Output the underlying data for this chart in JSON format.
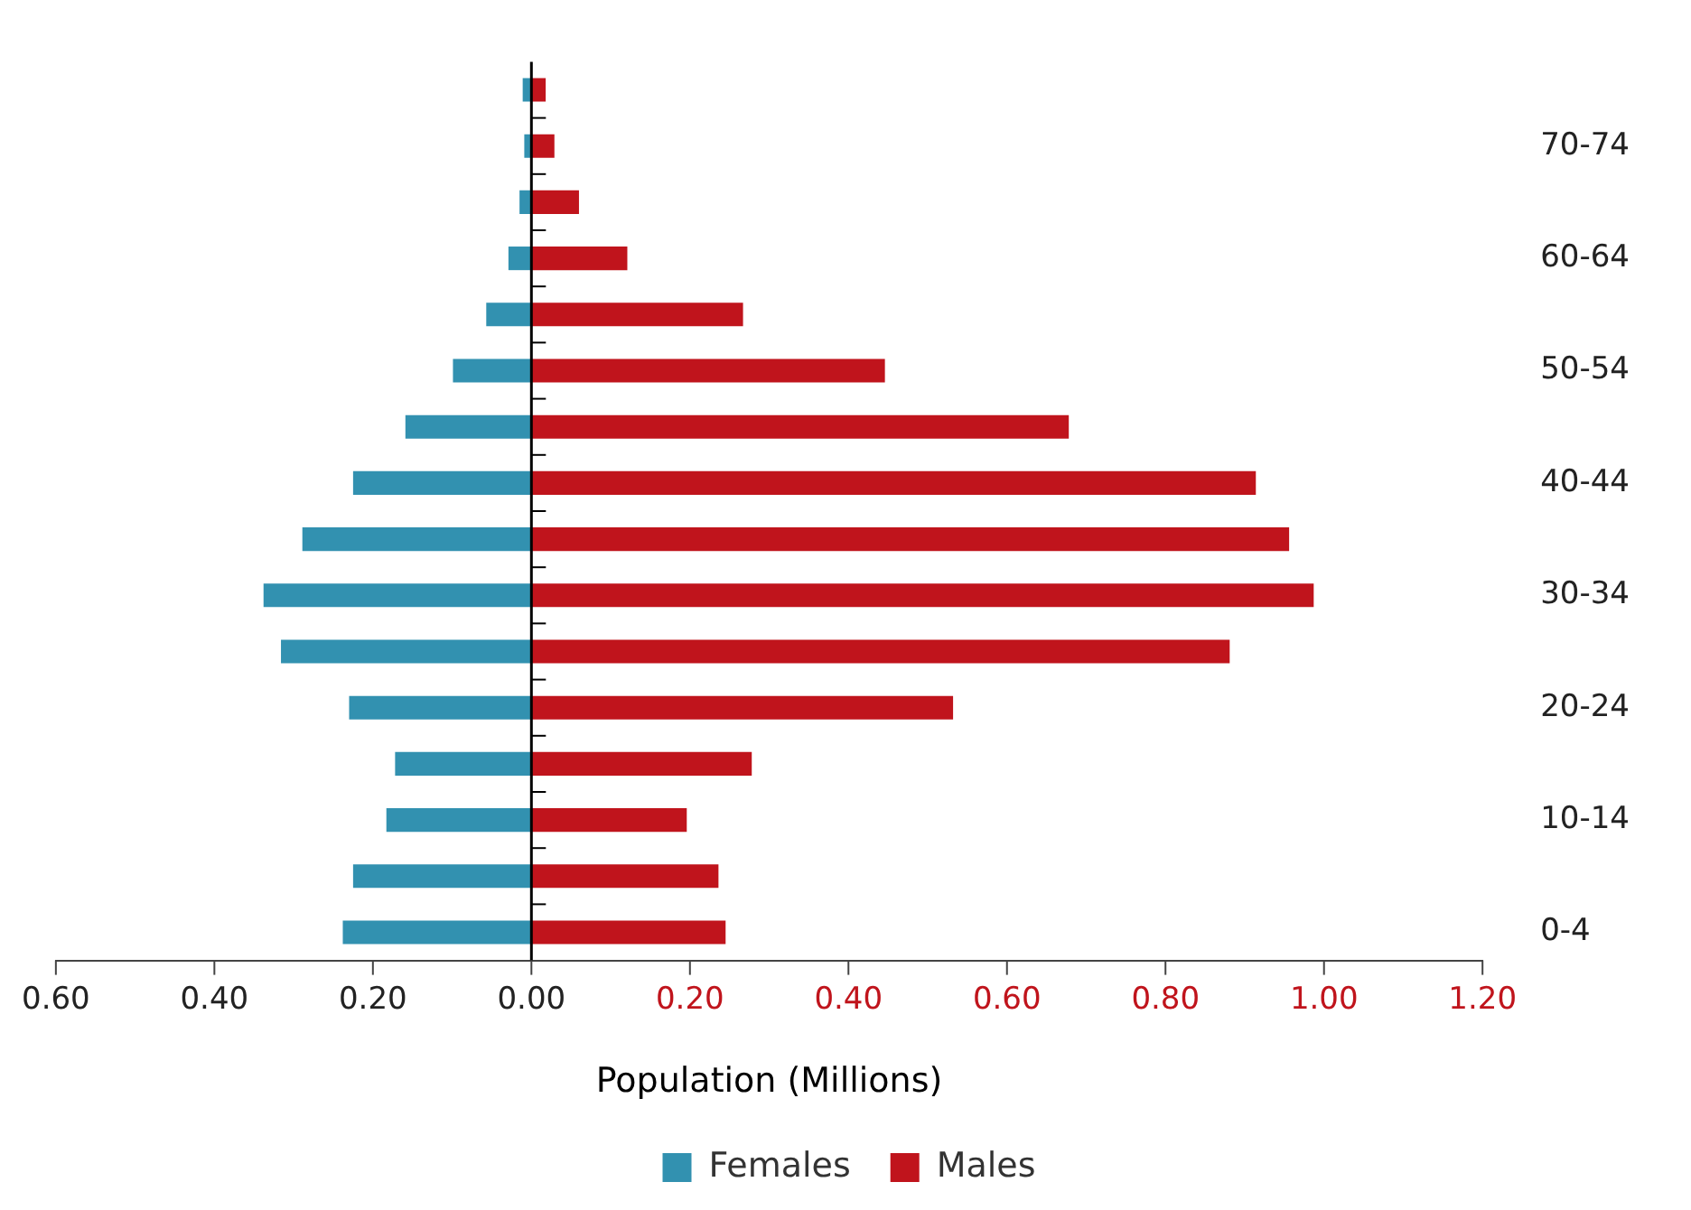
{
  "chart_data": {
    "type": "bar",
    "orientation": "horizontal",
    "xlabel": "Population (Millions)",
    "categories": [
      null,
      "70-74",
      null,
      "60-64",
      null,
      "50-54",
      null,
      "40-44",
      null,
      "30-34",
      null,
      "20-24",
      null,
      "10-14",
      null,
      "0-4"
    ],
    "series": [
      {
        "name": "Females",
        "color": "#3291b0",
        "values": [
          -0.011,
          -0.009,
          -0.015,
          -0.029,
          -0.057,
          -0.099,
          -0.159,
          -0.225,
          -0.289,
          -0.338,
          -0.316,
          -0.23,
          -0.172,
          -0.183,
          -0.225,
          -0.238
        ]
      },
      {
        "name": "Males",
        "color": "#c0141c",
        "values": [
          0.018,
          0.029,
          0.06,
          0.121,
          0.267,
          0.446,
          0.678,
          0.914,
          0.956,
          0.987,
          0.881,
          0.532,
          0.278,
          0.196,
          0.236,
          0.245
        ]
      }
    ],
    "xlim": [
      -0.6,
      1.2
    ],
    "xticks": [
      {
        "value": -0.6,
        "label": "0.60"
      },
      {
        "value": -0.4,
        "label": "0.40"
      },
      {
        "value": -0.2,
        "label": "0.20"
      },
      {
        "value": 0,
        "label": "0.00"
      },
      {
        "value": 0.2,
        "label": "0.20"
      },
      {
        "value": 0.4,
        "label": "0.40"
      },
      {
        "value": 0.6,
        "label": "0.60"
      },
      {
        "value": 0.8,
        "label": "0.80"
      },
      {
        "value": 1,
        "label": "1.00"
      },
      {
        "value": 1.2,
        "label": "1.20"
      }
    ],
    "ref_lines": [
      {
        "axis": "x",
        "value": 0,
        "color": "#000000"
      }
    ],
    "stacked": true,
    "grid": false,
    "legend": "bottom"
  }
}
